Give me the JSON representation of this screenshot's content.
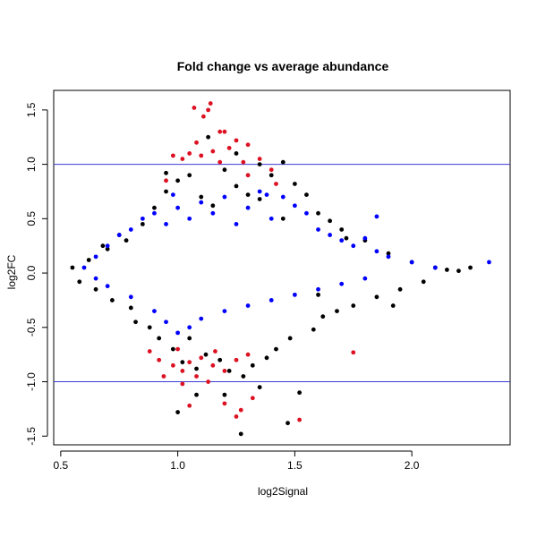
{
  "chart_data": {
    "type": "scatter",
    "title": "Fold change vs average abundance",
    "xlabel": "log2Signal",
    "ylabel": "log2FC",
    "xlim": [
      0.47,
      2.42
    ],
    "ylim": [
      -1.58,
      1.68
    ],
    "xticks": [
      0.5,
      1.0,
      1.5,
      2.0
    ],
    "xtick_labels": [
      "0.5",
      "1.0",
      "1.5",
      "2.0"
    ],
    "yticks": [
      -1.5,
      -1.0,
      -0.5,
      0.0,
      0.5,
      1.0,
      1.5
    ],
    "ytick_labels": [
      "-1.5",
      "-1.0",
      "-0.5",
      "0.0",
      "0.5",
      "1.0",
      "1.5"
    ],
    "hlines": [
      1.0,
      -1.0
    ],
    "hline_color": "#3b3bd6",
    "grid": false,
    "legend": "none",
    "series": [
      {
        "color": "#000000",
        "points": [
          [
            0.55,
            0.05
          ],
          [
            0.58,
            -0.08
          ],
          [
            0.62,
            0.12
          ],
          [
            0.65,
            -0.15
          ],
          [
            0.7,
            0.22
          ],
          [
            0.72,
            -0.25
          ],
          [
            0.78,
            0.3
          ],
          [
            0.8,
            -0.32
          ],
          [
            0.85,
            0.45
          ],
          [
            0.88,
            -0.5
          ],
          [
            0.9,
            0.6
          ],
          [
            0.92,
            -0.6
          ],
          [
            0.95,
            0.75
          ],
          [
            0.98,
            -0.7
          ],
          [
            1.0,
            0.85
          ],
          [
            1.02,
            -0.82
          ],
          [
            1.05,
            0.9
          ],
          [
            1.08,
            -0.88
          ],
          [
            1.1,
            0.7
          ],
          [
            1.12,
            -0.75
          ],
          [
            1.15,
            0.62
          ],
          [
            1.18,
            -0.8
          ],
          [
            1.2,
            0.95
          ],
          [
            1.22,
            -0.9
          ],
          [
            1.25,
            0.8
          ],
          [
            1.28,
            -0.95
          ],
          [
            1.3,
            0.72
          ],
          [
            1.32,
            -0.85
          ],
          [
            1.35,
            0.68
          ],
          [
            1.38,
            -0.78
          ],
          [
            1.4,
            0.9
          ],
          [
            1.42,
            -0.7
          ],
          [
            1.45,
            1.02
          ],
          [
            1.48,
            -0.6
          ],
          [
            1.5,
            0.82
          ],
          [
            1.52,
            -1.1
          ],
          [
            1.55,
            0.72
          ],
          [
            1.58,
            -0.52
          ],
          [
            1.6,
            0.55
          ],
          [
            1.62,
            -0.4
          ],
          [
            1.65,
            0.48
          ],
          [
            1.68,
            -0.35
          ],
          [
            1.7,
            0.4
          ],
          [
            1.75,
            -0.3
          ],
          [
            1.8,
            0.3
          ],
          [
            1.85,
            -0.22
          ],
          [
            1.9,
            0.18
          ],
          [
            1.95,
            -0.15
          ],
          [
            2.0,
            0.1
          ],
          [
            2.05,
            -0.08
          ],
          [
            2.1,
            0.05
          ],
          [
            2.15,
            0.03
          ],
          [
            2.2,
            0.02
          ],
          [
            2.25,
            0.05
          ],
          [
            1.27,
            -1.48
          ],
          [
            1.0,
            -1.28
          ],
          [
            1.08,
            -1.12
          ],
          [
            1.47,
            -1.38
          ],
          [
            1.2,
            -1.12
          ],
          [
            1.35,
            -1.05
          ],
          [
            1.13,
            1.25
          ],
          [
            1.25,
            1.1
          ],
          [
            0.95,
            0.92
          ],
          [
            1.35,
            1.0
          ],
          [
            0.82,
            -0.45
          ],
          [
            0.75,
            0.35
          ],
          [
            1.05,
            -0.6
          ],
          [
            1.45,
            0.5
          ],
          [
            1.6,
            -0.2
          ],
          [
            0.68,
            0.25
          ],
          [
            1.92,
            -0.3
          ],
          [
            1.72,
            0.32
          ]
        ]
      },
      {
        "color": "#0000ff",
        "points": [
          [
            0.6,
            0.05
          ],
          [
            0.65,
            0.15
          ],
          [
            0.7,
            0.25
          ],
          [
            0.75,
            0.35
          ],
          [
            0.8,
            0.4
          ],
          [
            0.85,
            0.5
          ],
          [
            0.9,
            0.55
          ],
          [
            0.95,
            0.45
          ],
          [
            1.0,
            0.6
          ],
          [
            1.05,
            0.5
          ],
          [
            1.1,
            0.65
          ],
          [
            1.15,
            0.55
          ],
          [
            1.2,
            0.7
          ],
          [
            1.25,
            0.45
          ],
          [
            1.3,
            0.6
          ],
          [
            1.35,
            0.75
          ],
          [
            1.4,
            0.5
          ],
          [
            1.45,
            0.7
          ],
          [
            1.5,
            0.62
          ],
          [
            1.55,
            0.55
          ],
          [
            1.6,
            0.4
          ],
          [
            1.65,
            0.35
          ],
          [
            1.7,
            0.3
          ],
          [
            1.75,
            0.25
          ],
          [
            1.8,
            0.32
          ],
          [
            1.85,
            0.2
          ],
          [
            1.9,
            0.15
          ],
          [
            2.0,
            0.1
          ],
          [
            2.1,
            0.05
          ],
          [
            2.33,
            0.1
          ],
          [
            0.65,
            -0.05
          ],
          [
            0.7,
            -0.12
          ],
          [
            0.8,
            -0.22
          ],
          [
            0.9,
            -0.35
          ],
          [
            0.95,
            -0.45
          ],
          [
            1.0,
            -0.55
          ],
          [
            1.05,
            -0.5
          ],
          [
            1.1,
            -0.42
          ],
          [
            1.2,
            -0.35
          ],
          [
            1.3,
            -0.3
          ],
          [
            1.4,
            -0.25
          ],
          [
            1.5,
            -0.2
          ],
          [
            1.6,
            -0.15
          ],
          [
            1.7,
            -0.1
          ],
          [
            1.8,
            -0.05
          ],
          [
            1.85,
            0.52
          ],
          [
            1.38,
            0.72
          ],
          [
            0.98,
            0.72
          ]
        ]
      },
      {
        "color": "#dd1122",
        "points": [
          [
            1.14,
            1.56
          ],
          [
            1.07,
            1.52
          ],
          [
            1.11,
            1.44
          ],
          [
            1.13,
            1.5
          ],
          [
            1.2,
            1.3
          ],
          [
            1.25,
            1.22
          ],
          [
            1.3,
            1.18
          ],
          [
            1.05,
            1.1
          ],
          [
            1.15,
            1.12
          ],
          [
            1.22,
            1.15
          ],
          [
            1.35,
            1.05
          ],
          [
            1.02,
            1.05
          ],
          [
            0.98,
            1.08
          ],
          [
            1.18,
            1.02
          ],
          [
            1.28,
            1.02
          ],
          [
            1.4,
            0.95
          ],
          [
            1.08,
            1.2
          ],
          [
            1.1,
            1.08
          ],
          [
            0.95,
            0.85
          ],
          [
            1.3,
            0.9
          ],
          [
            1.42,
            0.82
          ],
          [
            0.88,
            -0.72
          ],
          [
            0.92,
            -0.8
          ],
          [
            0.98,
            -0.85
          ],
          [
            1.02,
            -0.9
          ],
          [
            1.05,
            -0.82
          ],
          [
            1.1,
            -0.78
          ],
          [
            1.15,
            -0.85
          ],
          [
            1.2,
            -0.9
          ],
          [
            1.25,
            -0.8
          ],
          [
            1.3,
            -0.75
          ],
          [
            1.02,
            -1.02
          ],
          [
            1.08,
            -0.95
          ],
          [
            1.13,
            -1.0
          ],
          [
            1.05,
            -1.22
          ],
          [
            1.2,
            -1.2
          ],
          [
            1.25,
            -1.32
          ],
          [
            1.32,
            -1.15
          ],
          [
            1.75,
            -0.73
          ],
          [
            1.52,
            -1.35
          ],
          [
            1.27,
            -1.26
          ],
          [
            1.0,
            -0.7
          ],
          [
            1.16,
            -0.72
          ],
          [
            0.94,
            -0.95
          ],
          [
            1.18,
            1.3
          ]
        ]
      }
    ]
  }
}
